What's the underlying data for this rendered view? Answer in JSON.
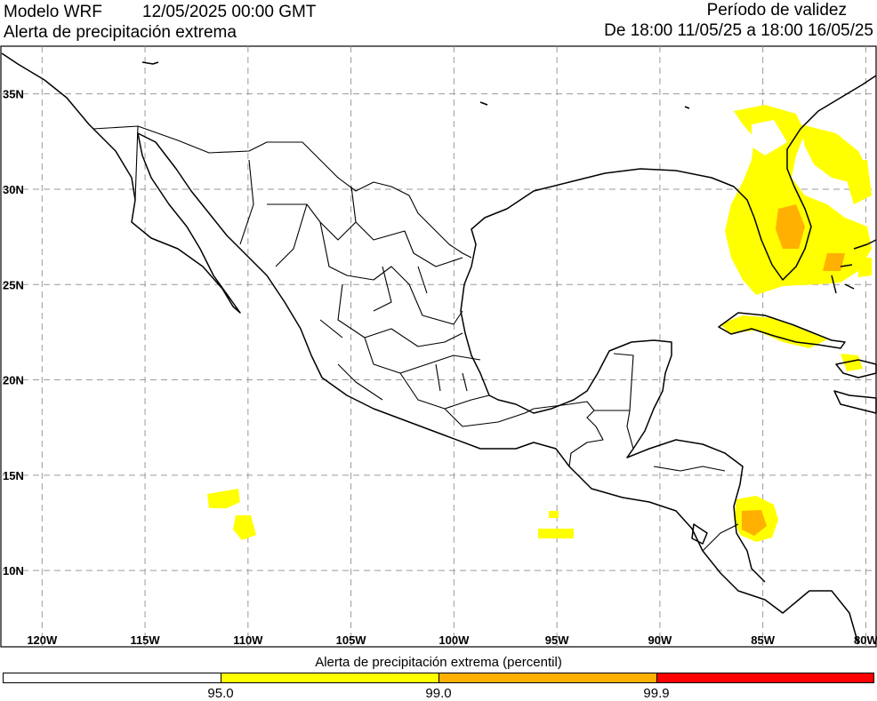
{
  "header": {
    "model": "Modelo WRF",
    "datetime": "12/05/2025 00:00 GMT",
    "product": "Alerta de precipitación extrema",
    "validity_title": "Período de validez",
    "validity_range": "De 18:00 11/05/25 a 18:00 16/05/25"
  },
  "map": {
    "lon_range": [
      -122,
      -79.5
    ],
    "lat_range": [
      6,
      37.5
    ],
    "lat_ticks": [
      {
        "value": 35,
        "label": "35N"
      },
      {
        "value": 30,
        "label": "30N"
      },
      {
        "value": 25,
        "label": "25N"
      },
      {
        "value": 20,
        "label": "20N"
      },
      {
        "value": 15,
        "label": "15N"
      },
      {
        "value": 10,
        "label": "10N"
      }
    ],
    "lon_ticks": [
      {
        "value": -120,
        "label": "120W"
      },
      {
        "value": -115,
        "label": "115W"
      },
      {
        "value": -110,
        "label": "110W"
      },
      {
        "value": -105,
        "label": "105W"
      },
      {
        "value": -100,
        "label": "100W"
      },
      {
        "value": -95,
        "label": "95W"
      },
      {
        "value": -90,
        "label": "90W"
      },
      {
        "value": -85,
        "label": "85W"
      },
      {
        "value": -80,
        "label": "80W"
      }
    ],
    "grid": true,
    "colors": {
      "coast": "#000000",
      "grid": "#9a9a9a",
      "yellow": "#ffff00",
      "orange": "#ffb000",
      "red": "#ff0000"
    }
  },
  "legend": {
    "title": "Alerta de precipitación extrema (percentil)",
    "bins": [
      {
        "from": null,
        "to": 95.0,
        "color": "#ffffff"
      },
      {
        "from": 95.0,
        "to": 99.0,
        "color": "#ffff00"
      },
      {
        "from": 99.0,
        "to": 99.9,
        "color": "#ffb000"
      },
      {
        "from": 99.9,
        "to": null,
        "color": "#ff0000"
      }
    ],
    "labels": [
      "95.0",
      "99.0",
      "99.9"
    ]
  }
}
